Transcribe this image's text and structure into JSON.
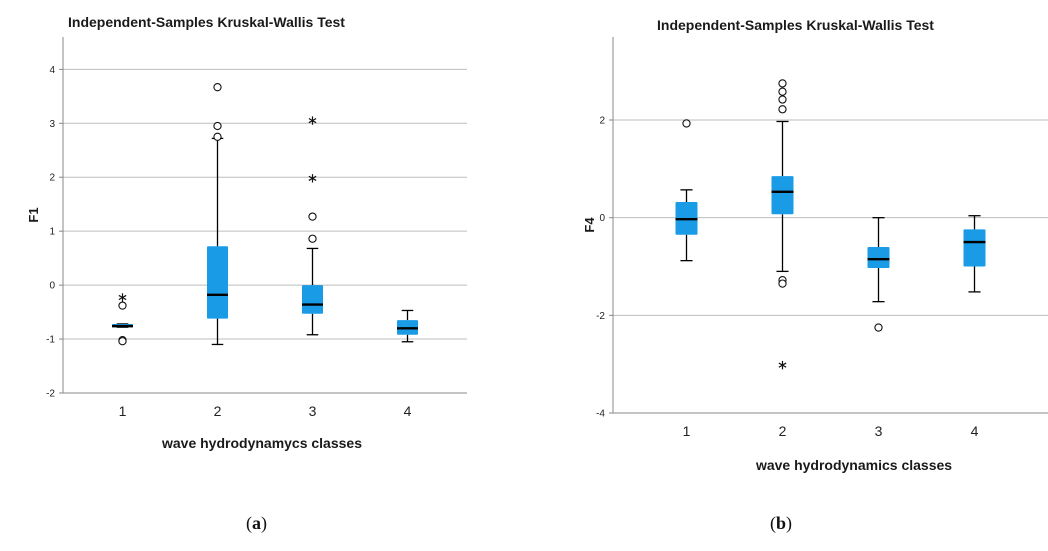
{
  "chart_data": [
    {
      "type": "boxplot",
      "title": "Independent-Samples Kruskal-Wallis Test",
      "xlabel": "wave hydrodynamycs classes",
      "ylabel": "F1",
      "categories": [
        "1",
        "2",
        "3",
        "4"
      ],
      "ylim": [
        -2.0,
        4.6
      ],
      "yticks": [
        -2,
        -1,
        0,
        1,
        2,
        3,
        4
      ],
      "gridlines": [
        -1,
        0,
        1,
        2,
        3,
        4
      ],
      "box_color": "#1a9be6",
      "boxes": [
        {
          "category": "1",
          "whisker_low": -0.78,
          "q1": -0.78,
          "median": -0.76,
          "q3": -0.72,
          "whisker_high": -0.72,
          "outliers": [
            -0.38,
            -1.02,
            -1.04
          ],
          "extremes": [
            -0.23
          ]
        },
        {
          "category": "2",
          "whisker_low": -1.1,
          "q1": -0.62,
          "median": -0.18,
          "q3": 0.72,
          "whisker_high": 2.72,
          "outliers": [
            2.75,
            2.95,
            3.67
          ],
          "extremes": []
        },
        {
          "category": "3",
          "whisker_low": -0.92,
          "q1": -0.53,
          "median": -0.36,
          "q3": 0.0,
          "whisker_high": 0.68,
          "outliers": [
            0.86,
            1.27
          ],
          "extremes": [
            1.98,
            3.05
          ]
        },
        {
          "category": "4",
          "whisker_low": -1.05,
          "q1": -0.92,
          "median": -0.8,
          "q3": -0.65,
          "whisker_high": -0.47,
          "outliers": [],
          "extremes": []
        }
      ],
      "caption": "(a)"
    },
    {
      "type": "boxplot",
      "title": "Independent-Samples Kruskal-Wallis Test",
      "xlabel": "wave hydrodynamics classes",
      "ylabel": "F4",
      "categories": [
        "1",
        "2",
        "3",
        "4"
      ],
      "ylim": [
        -4,
        3.7
      ],
      "yticks": [
        -4,
        -2,
        0,
        2
      ],
      "gridlines": [
        -2,
        0,
        2
      ],
      "box_color": "#1a9be6",
      "boxes": [
        {
          "category": "1",
          "whisker_low": -0.88,
          "q1": -0.35,
          "median": -0.03,
          "q3": 0.32,
          "whisker_high": 0.57,
          "outliers": [
            1.93
          ],
          "extremes": []
        },
        {
          "category": "2",
          "whisker_low": -1.1,
          "q1": 0.07,
          "median": 0.53,
          "q3": 0.85,
          "whisker_high": 1.97,
          "outliers": [
            2.22,
            2.42,
            2.58,
            2.75,
            -1.28,
            -1.35
          ],
          "extremes": [
            -3.02
          ]
        },
        {
          "category": "3",
          "whisker_low": -1.72,
          "q1": -1.03,
          "median": -0.85,
          "q3": -0.6,
          "whisker_high": 0.0,
          "outliers": [
            -2.25
          ],
          "extremes": []
        },
        {
          "category": "4",
          "whisker_low": -1.52,
          "q1": -1.0,
          "median": -0.5,
          "q3": -0.24,
          "whisker_high": 0.04,
          "outliers": [],
          "extremes": []
        }
      ],
      "caption": "(b)"
    }
  ],
  "captions": {
    "a_open": "(",
    "a_letter": "a",
    "a_close": ")",
    "b_open": "(",
    "b_letter": "b",
    "b_close": ")"
  }
}
